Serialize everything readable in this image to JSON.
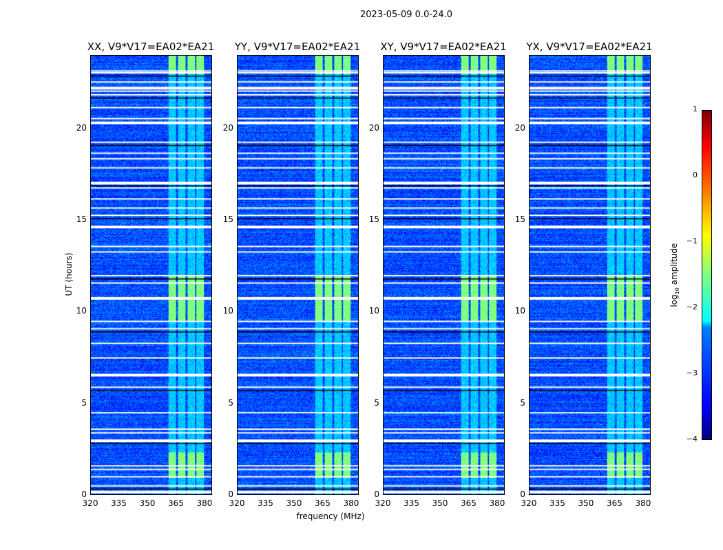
{
  "title": "2023-05-09 0.0-24.0",
  "panels": [
    {
      "title": "XX, V9*V17=EA02*EA21"
    },
    {
      "title": "YY, V9*V17=EA02*EA21"
    },
    {
      "title": "XY, V9*V17=EA02*EA21"
    },
    {
      "title": "YX, V9*V17=EA02*EA21"
    }
  ],
  "chart_data": {
    "type": "heatmap",
    "title": "2023-05-09 0.0-24.0",
    "xlabel": "frequency (MHz)",
    "ylabel": "UT (hours)",
    "xlim": [
      320,
      384
    ],
    "ylim": [
      0,
      24
    ],
    "xticks": [
      "320",
      "335",
      "350",
      "365",
      "380"
    ],
    "yticks": [
      "0",
      "5",
      "10",
      "15",
      "20"
    ],
    "colorbar": {
      "label": "log10 amplitude",
      "range": [
        -4,
        1
      ],
      "ticks": [
        "1",
        "0",
        "−1",
        "−2",
        "−3",
        "−4"
      ],
      "colormap": "jet"
    },
    "background_level": -3.0,
    "bright_bands_MHz": [
      [
        361,
        365
      ],
      [
        366,
        370
      ],
      [
        371,
        375
      ],
      [
        376,
        380
      ]
    ],
    "bright_periods_UT": [
      [
        0.9,
        2.3
      ],
      [
        9.5,
        12.0
      ],
      [
        23.0,
        24.0
      ]
    ],
    "flagged_UT": [
      0.2,
      0.5,
      1.0,
      1.4,
      1.6,
      3.0,
      3.4,
      3.6,
      4.5,
      5.9,
      6.6,
      7.5,
      8.3,
      9.1,
      9.5,
      10.8,
      11.6,
      12.0,
      13.3,
      13.6,
      14.7,
      15.3,
      15.7,
      16.2,
      16.8,
      17.1,
      17.9,
      18.4,
      18.7,
      19.3,
      20.4,
      20.6,
      21.2,
      21.9,
      22.1,
      22.3,
      22.6,
      23.1,
      23.2
    ]
  }
}
